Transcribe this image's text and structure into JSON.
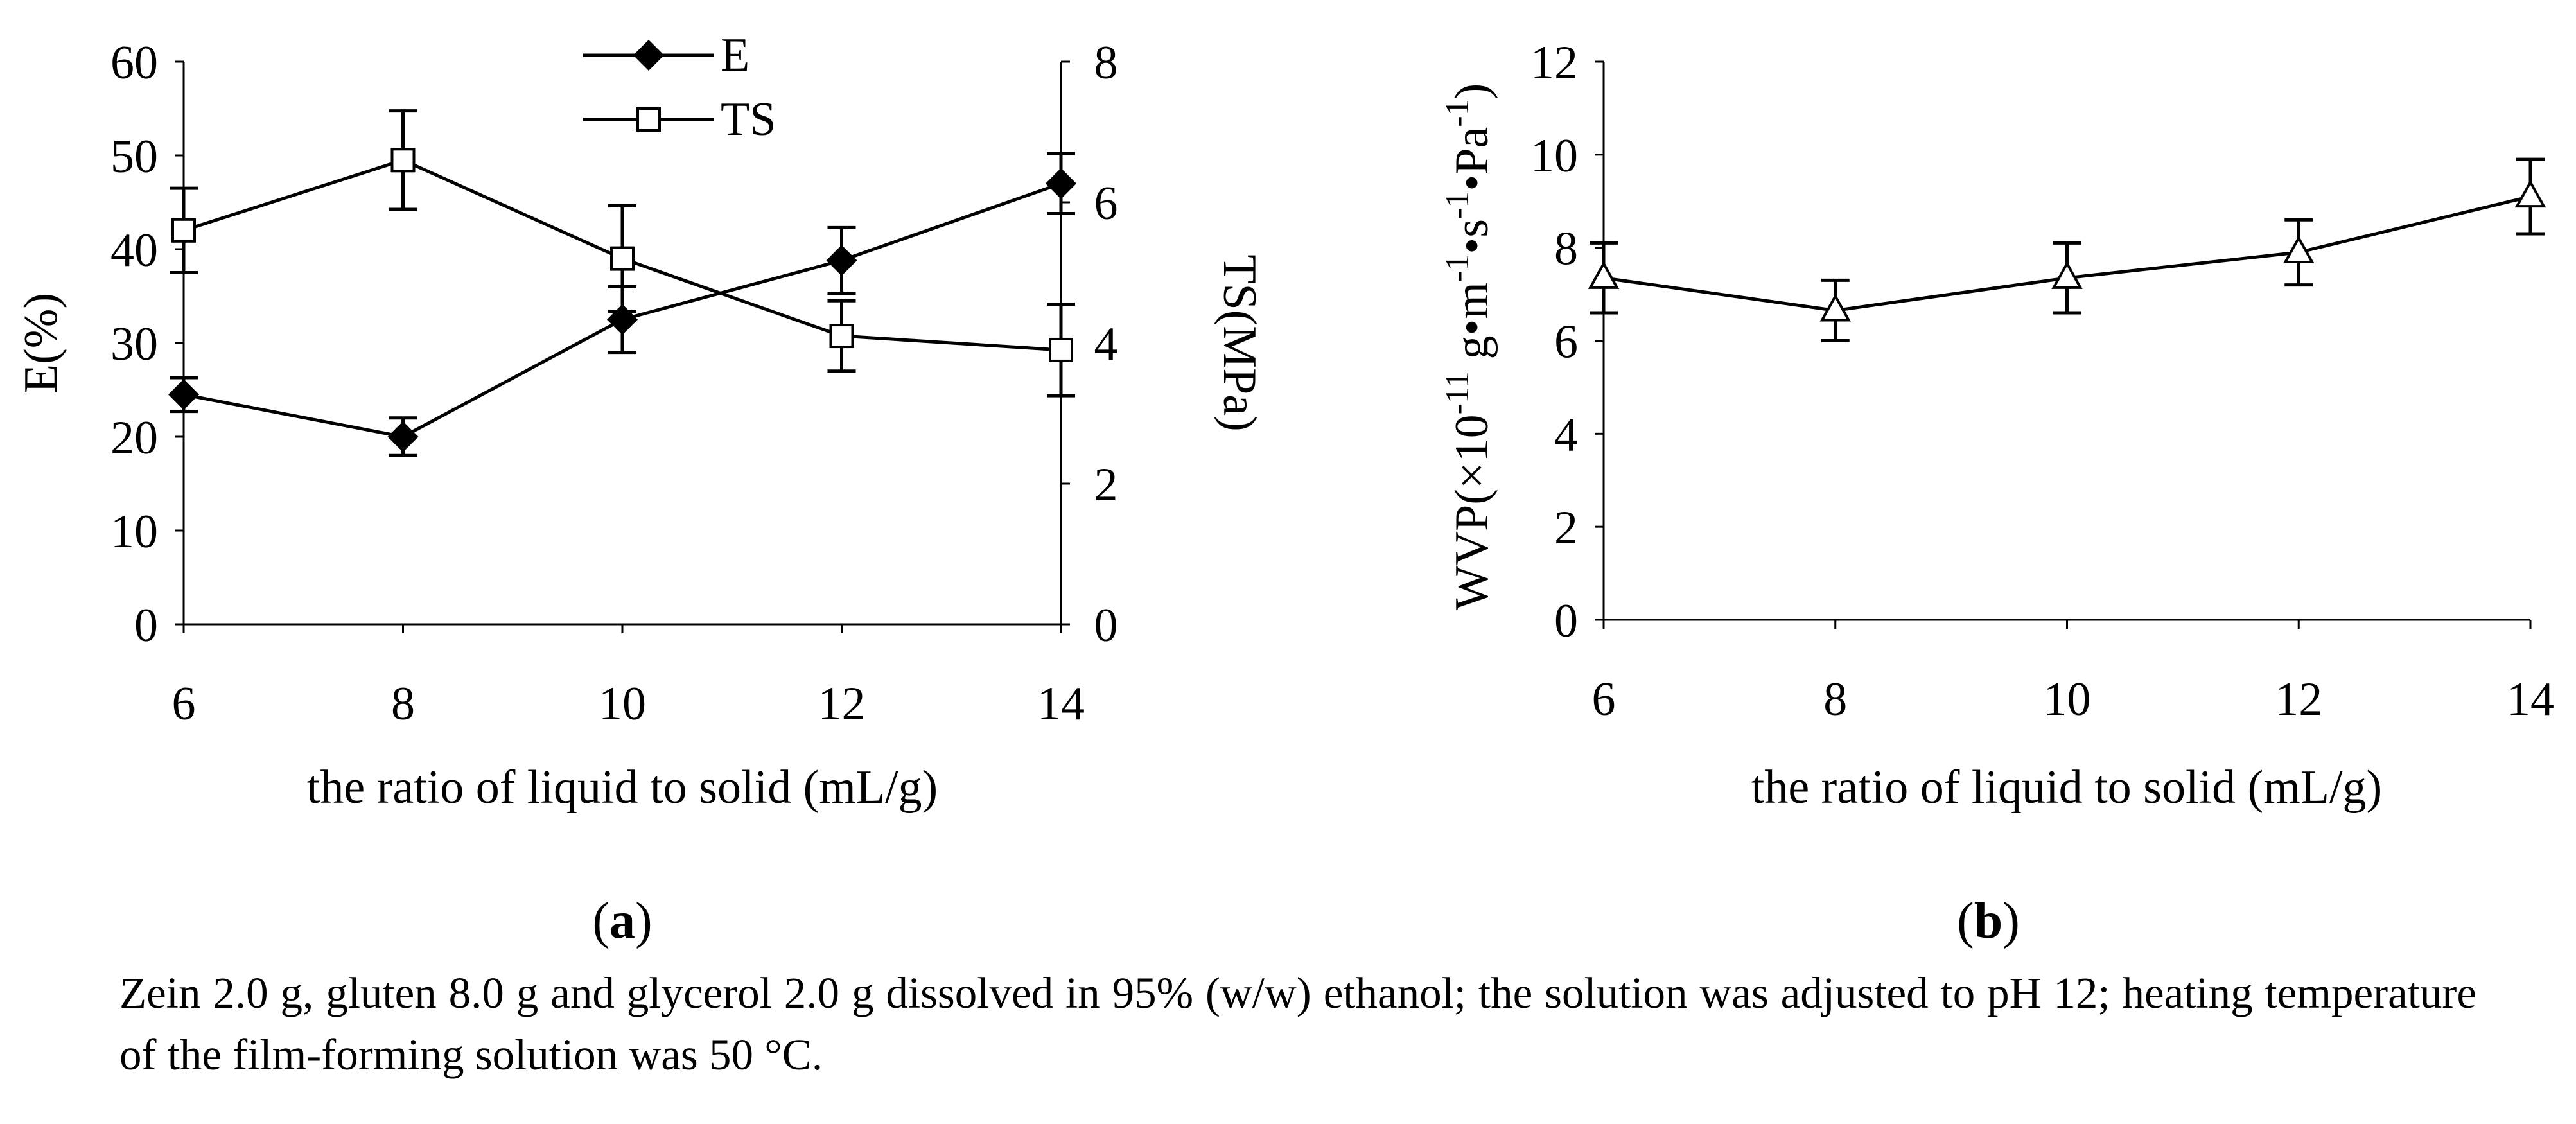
{
  "chart_data": [
    {
      "panel": "(a)",
      "type": "line",
      "x": [
        6,
        8,
        10,
        12,
        14
      ],
      "xlabel": "the ratio of liquid to solid (mL/g)",
      "ylabel": "E(%)",
      "y2label": "TS(MPa)",
      "xlim": [
        6,
        14
      ],
      "ylim": [
        0,
        60
      ],
      "y2lim": [
        0,
        8
      ],
      "xticks": [
        "6",
        "8",
        "10",
        "12",
        "14"
      ],
      "yticks": [
        "0",
        "10",
        "20",
        "30",
        "40",
        "50",
        "60"
      ],
      "y2ticks": [
        "0",
        "2",
        "4",
        "6",
        "8"
      ],
      "legend_position": "top-center",
      "series": [
        {
          "name": "E",
          "axis": "left",
          "marker": "filled-diamond",
          "values": [
            24.5,
            20.0,
            32.5,
            38.8,
            47.0
          ],
          "errors": [
            1.8,
            2.0,
            3.5,
            3.5,
            3.2
          ]
        },
        {
          "name": "TS",
          "axis": "right",
          "marker": "open-square",
          "values": [
            5.6,
            6.6,
            5.2,
            4.1,
            3.9
          ],
          "errors": [
            0.6,
            0.7,
            0.75,
            0.5,
            0.65
          ]
        }
      ],
      "grid": false
    },
    {
      "panel": "(b)",
      "type": "line",
      "x": [
        6,
        8,
        10,
        12,
        14
      ],
      "xlabel": "the ratio of liquid to solid (mL/g)",
      "ylabel_parts": {
        "base": "WVP(×10",
        "exp1": "-11",
        "mid": " g•m",
        "exp2": "-1",
        "mid2": "•s",
        "exp3": "-1",
        "mid3": "•Pa",
        "exp4": "-1",
        "end": ")"
      },
      "xlim": [
        6,
        14
      ],
      "ylim": [
        0,
        12
      ],
      "xticks": [
        "6",
        "8",
        "10",
        "12",
        "14"
      ],
      "yticks": [
        "0",
        "2",
        "4",
        "6",
        "8",
        "10",
        "12"
      ],
      "series": [
        {
          "name": "",
          "marker": "open-triangle",
          "values": [
            7.35,
            6.65,
            7.35,
            7.9,
            9.1
          ],
          "errors": [
            0.75,
            0.65,
            0.75,
            0.7,
            0.8
          ]
        }
      ],
      "grid": false
    }
  ],
  "caption": "Zein 2.0 g, gluten 8.0 g and glycerol 2.0 g dissolved in 95% (w/w) ethanol; the solution was adjusted to pH 12; heating temperature of the film-forming solution was 50 °C."
}
